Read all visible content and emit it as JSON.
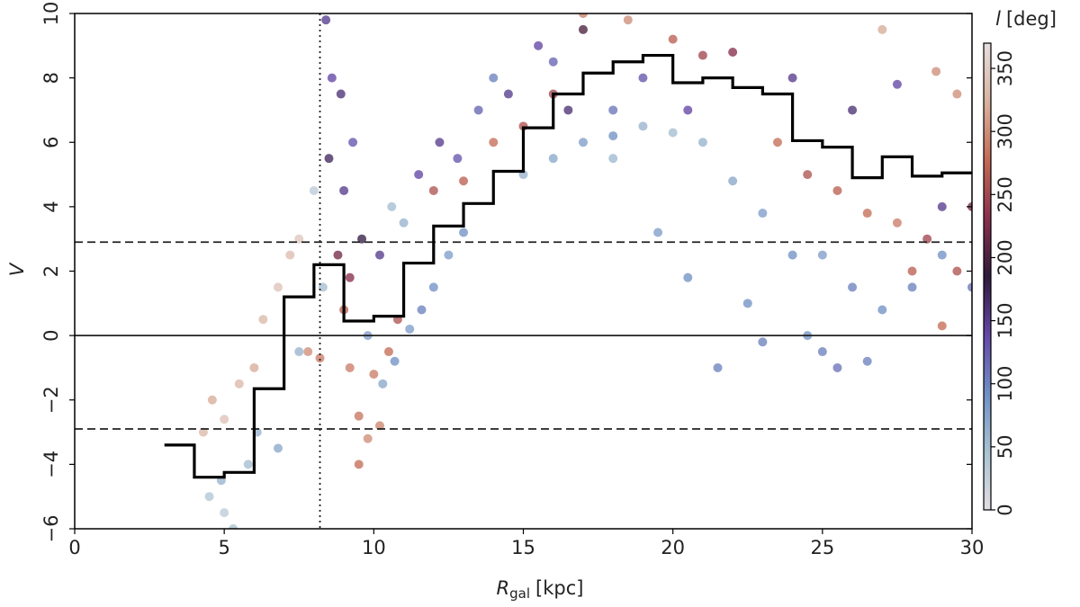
{
  "chart_data": {
    "type": "scatter",
    "xlabel": {
      "main": "R",
      "sub": "gal",
      "unit": "[kpc]"
    },
    "ylabel": "V",
    "xlim": [
      0,
      30
    ],
    "ylim": [
      -6,
      10
    ],
    "xticks": [
      0,
      5,
      10,
      15,
      20,
      25,
      30
    ],
    "yticks": [
      {
        "value": -6,
        "label": "−6"
      },
      {
        "value": -4,
        "label": "−4"
      },
      {
        "value": -2,
        "label": "−2"
      },
      0,
      2,
      4,
      6,
      8,
      10
    ],
    "x": [
      4.3,
      4.6,
      5.0,
      5.5,
      6.0,
      6.3,
      6.8,
      7.2,
      7.5,
      7.8,
      4.5,
      5.0,
      5.3,
      4.9,
      5.8,
      6.1,
      6.8,
      7.5,
      8.0,
      8.3,
      8.4,
      8.6,
      8.9,
      8.5,
      9.0,
      9.3,
      9.6,
      8.8,
      9.2,
      10.2,
      9.2,
      9.5,
      9.5,
      9.8,
      10.2,
      10.0,
      10.5,
      10.8,
      9.0,
      8.2,
      9.8,
      10.3,
      10.7,
      11.2,
      11.6,
      12.0,
      11.0,
      12.5,
      13.0,
      10.6,
      11.5,
      12.2,
      12.8,
      13.5,
      14.0,
      14.5,
      15.5,
      16.0,
      16.5,
      17.0,
      12.0,
      13.0,
      14.0,
      15.0,
      16.0,
      17.0,
      18.5,
      20.0,
      21.0,
      22.0,
      15.0,
      16.0,
      17.0,
      18.0,
      19.0,
      20.0,
      21.0,
      22.0,
      23.0,
      24.0,
      18.0,
      19.5,
      20.5,
      21.5,
      22.5,
      23.0,
      24.5,
      25.0,
      25.5,
      26.5,
      27.0,
      28.0,
      29.0,
      30.0,
      25.0,
      26.0,
      23.5,
      24.5,
      25.5,
      26.5,
      27.5,
      28.5,
      29.5,
      28.0,
      29.0,
      27.0,
      29.5,
      28.8,
      24.0,
      26.0,
      27.5,
      29.0,
      30.0,
      19.0,
      18.0,
      20.5
    ],
    "y": [
      -3.0,
      -2.0,
      -2.6,
      -1.5,
      -1.0,
      0.5,
      1.5,
      2.5,
      3.0,
      -0.5,
      -5.0,
      -5.5,
      -6.0,
      -4.5,
      -4.0,
      -3.0,
      -3.5,
      -0.5,
      4.5,
      1.5,
      9.8,
      8.0,
      7.5,
      5.5,
      4.5,
      6.0,
      3.0,
      2.5,
      1.8,
      2.5,
      -1.0,
      -2.5,
      -4.0,
      -3.2,
      -2.8,
      -1.2,
      -0.5,
      0.5,
      0.8,
      -0.7,
      0.0,
      -1.5,
      -0.8,
      0.2,
      0.8,
      1.5,
      3.5,
      2.5,
      3.2,
      4.0,
      5.0,
      6.0,
      5.5,
      7.0,
      8.0,
      7.5,
      9.0,
      8.5,
      7.0,
      9.5,
      4.5,
      4.8,
      6.0,
      6.5,
      7.5,
      10.0,
      9.8,
      9.2,
      8.7,
      8.8,
      5.0,
      5.5,
      6.0,
      6.2,
      6.5,
      6.3,
      6.0,
      4.8,
      3.8,
      2.5,
      5.5,
      3.2,
      1.8,
      -1.0,
      1.0,
      -0.2,
      0.0,
      -0.5,
      -1.0,
      -0.8,
      0.8,
      1.5,
      2.5,
      1.5,
      2.5,
      1.5,
      6.0,
      5.0,
      4.5,
      3.8,
      3.5,
      3.0,
      2.0,
      2.0,
      0.3,
      9.5,
      7.5,
      8.2,
      8.0,
      7.0,
      7.8,
      4.0,
      4.0,
      8.0,
      7.0,
      7.0
    ],
    "l": [
      330,
      320,
      340,
      330,
      320,
      330,
      340,
      335,
      345,
      300,
      40,
      30,
      45,
      60,
      50,
      60,
      70,
      60,
      30,
      50,
      150,
      140,
      160,
      170,
      150,
      130,
      180,
      220,
      230,
      150,
      290,
      285,
      280,
      300,
      295,
      290,
      280,
      260,
      270,
      290,
      80,
      70,
      90,
      80,
      100,
      90,
      60,
      80,
      90,
      50,
      140,
      150,
      130,
      120,
      100,
      150,
      140,
      120,
      160,
      200,
      260,
      270,
      280,
      260,
      250,
      290,
      300,
      270,
      250,
      230,
      60,
      70,
      80,
      90,
      60,
      50,
      60,
      70,
      80,
      90,
      55,
      80,
      90,
      100,
      90,
      100,
      90,
      100,
      110,
      100,
      90,
      100,
      90,
      110,
      80,
      100,
      280,
      260,
      270,
      280,
      290,
      250,
      260,
      270,
      280,
      320,
      300,
      300,
      150,
      160,
      140,
      150,
      220,
      130,
      110,
      140
    ],
    "colorbar": {
      "label": {
        "symbol": "l",
        "unit": "[deg]"
      },
      "clim": [
        0,
        370
      ],
      "ticks": [
        0,
        50,
        100,
        150,
        200,
        250,
        300,
        350
      ]
    },
    "colormap": [
      "#e2dde2",
      "#a9c2d2",
      "#6f8fc4",
      "#6447a8",
      "#2e1a3a",
      "#8a2f4e",
      "#c46a54",
      "#d9b3a0",
      "#e6dedf"
    ],
    "step_line": {
      "color": "#000000",
      "bins": [
        3,
        4,
        5,
        6,
        7,
        8,
        9,
        10,
        11,
        12,
        13,
        14,
        15,
        16,
        17,
        18,
        19,
        20,
        21,
        22,
        23,
        24,
        25,
        26,
        27,
        28,
        29,
        30
      ],
      "values": [
        -3.4,
        -4.4,
        -4.25,
        -1.65,
        1.2,
        2.2,
        0.45,
        0.6,
        2.25,
        3.4,
        4.1,
        5.1,
        6.45,
        7.5,
        8.15,
        8.5,
        8.7,
        7.85,
        8.0,
        7.7,
        7.5,
        6.05,
        5.85,
        4.9,
        5.55,
        4.95,
        5.05
      ]
    },
    "hlines": [
      {
        "y": 0,
        "style": "solid"
      },
      {
        "y": 2.9,
        "style": "dashed"
      },
      {
        "y": -2.9,
        "style": "dashed"
      }
    ],
    "vlines": [
      {
        "x": 8.2,
        "style": "dotted"
      }
    ]
  }
}
